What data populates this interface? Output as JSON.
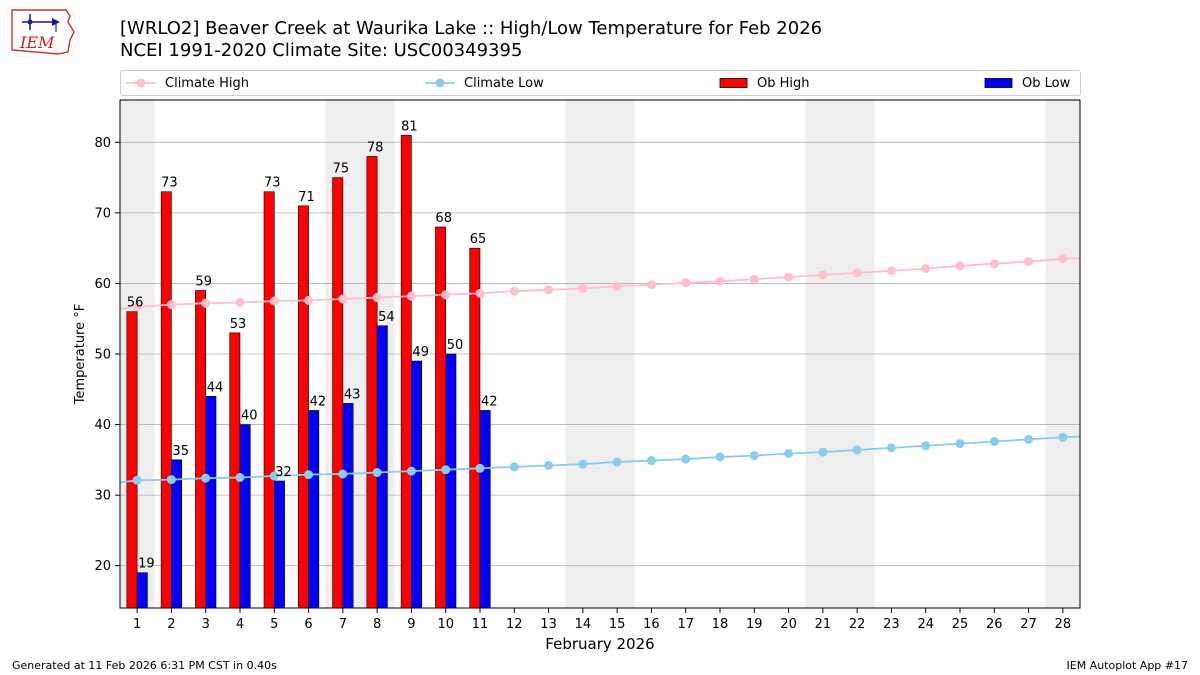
{
  "header": {
    "title_line1": "[WRLO2] Beaver Creek at Waurika Lake :: High/Low Temperature for Feb 2026",
    "title_line2": "NCEI 1991-2020 Climate Site: USC00349395",
    "logo_text": "IEM"
  },
  "footer": {
    "left": "Generated at 11 Feb 2026 6:31 PM CST in 0.40s",
    "right": "IEM Autoplot App #17"
  },
  "colors": {
    "climate_high": "#ffc0cb",
    "climate_low": "#87ceeb",
    "ob_high": "#ff0000",
    "ob_low": "#0000ff",
    "weekend_shade": "#eeeeee",
    "grid": "#b0b0b0"
  },
  "legend": [
    {
      "label": "Climate High",
      "kind": "line",
      "color": "#ffc0cb"
    },
    {
      "label": "Climate Low",
      "kind": "line",
      "color": "#87ceeb"
    },
    {
      "label": "Ob High",
      "kind": "patch",
      "color": "#ff0000"
    },
    {
      "label": "Ob Low",
      "kind": "patch",
      "color": "#0000ff"
    }
  ],
  "chart_data": {
    "type": "bar",
    "xlabel": "February 2026",
    "ylabel": "Temperature °F",
    "xlim": [
      0.5,
      28.5
    ],
    "ylim": [
      14,
      86
    ],
    "yticks": [
      20,
      30,
      40,
      50,
      60,
      70,
      80
    ],
    "grid": "horizontal",
    "legend_position": "top",
    "days": [
      1,
      2,
      3,
      4,
      5,
      6,
      7,
      8,
      9,
      10,
      11,
      12,
      13,
      14,
      15,
      16,
      17,
      18,
      19,
      20,
      21,
      22,
      23,
      24,
      25,
      26,
      27,
      28
    ],
    "weekend_days": [
      1,
      7,
      8,
      14,
      15,
      21,
      22,
      28
    ],
    "series": [
      {
        "name": "Ob High",
        "type": "bar",
        "values": [
          56,
          73,
          59,
          53,
          73,
          71,
          75,
          78,
          81,
          68,
          65
        ],
        "value_labels": [
          "56",
          "73",
          "59",
          "53",
          "73",
          "71",
          "75",
          "78",
          "81",
          "68",
          "65"
        ]
      },
      {
        "name": "Ob Low",
        "type": "bar",
        "values": [
          19,
          35,
          44,
          40,
          32,
          42,
          43,
          54,
          49,
          50,
          42
        ],
        "value_labels": [
          "19",
          "35",
          "44",
          "40",
          "32",
          "42",
          "43",
          "54",
          "49",
          "50",
          "42"
        ]
      },
      {
        "name": "Climate High",
        "type": "line",
        "values": [
          56.7,
          57.0,
          57.2,
          57.3,
          57.5,
          57.6,
          57.8,
          58.0,
          58.2,
          58.4,
          58.6,
          58.9,
          59.1,
          59.3,
          59.6,
          59.8,
          60.1,
          60.3,
          60.6,
          60.9,
          61.2,
          61.5,
          61.8,
          62.1,
          62.5,
          62.8,
          63.1,
          63.5
        ]
      },
      {
        "name": "Climate Low",
        "type": "line",
        "values": [
          32.1,
          32.2,
          32.4,
          32.5,
          32.7,
          32.9,
          33.0,
          33.2,
          33.4,
          33.6,
          33.8,
          34.0,
          34.2,
          34.4,
          34.7,
          34.9,
          35.1,
          35.4,
          35.6,
          35.9,
          36.1,
          36.4,
          36.7,
          37.0,
          37.3,
          37.6,
          37.9,
          38.2
        ]
      }
    ]
  }
}
